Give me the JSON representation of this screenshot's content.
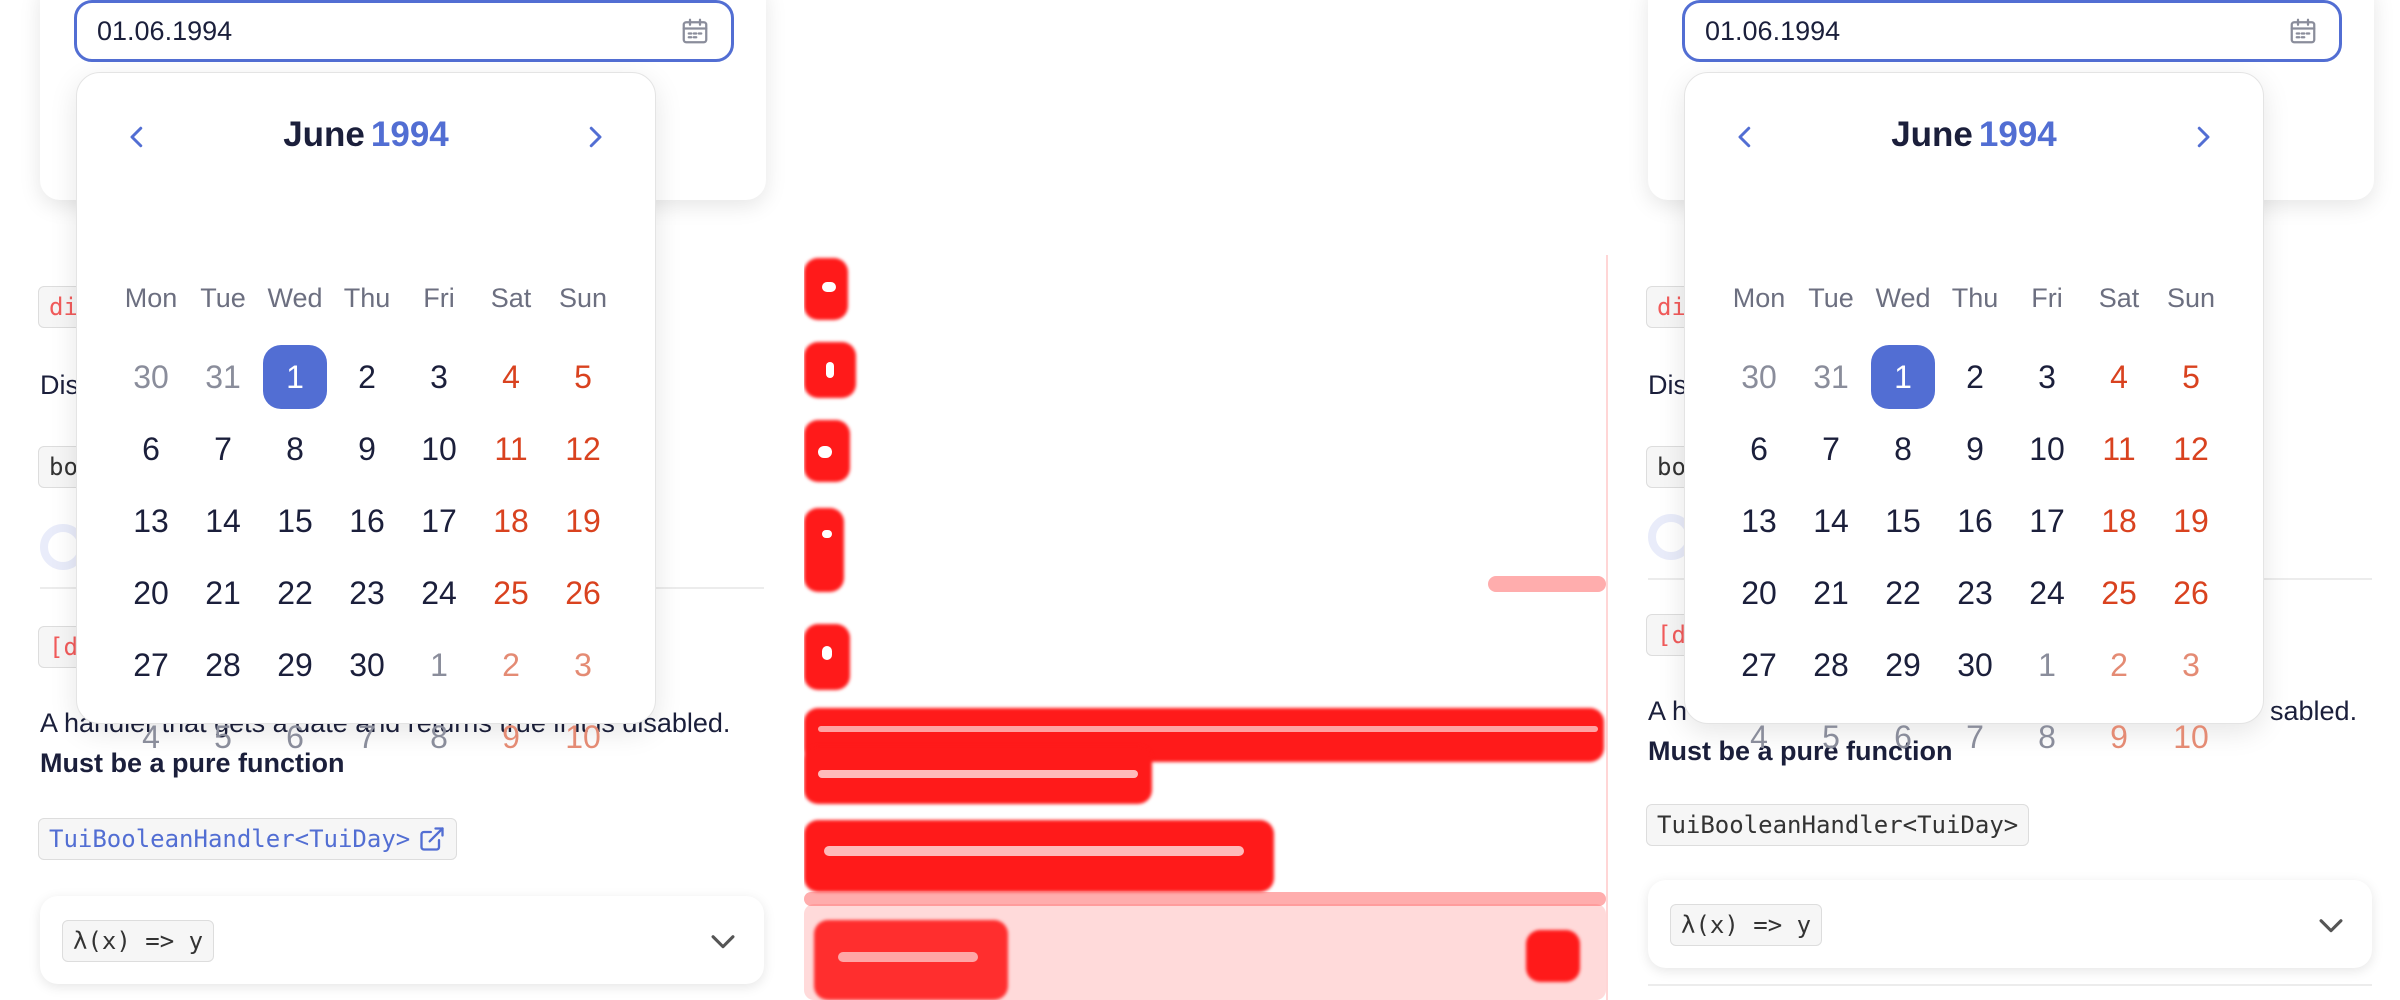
{
  "date_input": {
    "value": "01.06.1994"
  },
  "calendar": {
    "month": "June",
    "year": "1994",
    "weekdays": [
      "Mon",
      "Tue",
      "Wed",
      "Thu",
      "Fri",
      "Sat",
      "Sun"
    ],
    "weeks": [
      [
        "30",
        "31",
        "1",
        "2",
        "3",
        "4",
        "5"
      ],
      [
        "6",
        "7",
        "8",
        "9",
        "10",
        "11",
        "12"
      ],
      [
        "13",
        "14",
        "15",
        "16",
        "17",
        "18",
        "19"
      ],
      [
        "20",
        "21",
        "22",
        "23",
        "24",
        "25",
        "26"
      ],
      [
        "27",
        "28",
        "29",
        "30",
        "1",
        "2",
        "3"
      ],
      [
        "4",
        "5",
        "6",
        "7",
        "8",
        "9",
        "10"
      ]
    ],
    "selected_day": "1"
  },
  "left_docs": {
    "code_disabled": "di",
    "text_disabled": "Dis",
    "code_boolean": "bo",
    "code_disabled_item": "[d",
    "handler_text": "A handler that gets a date and returns true if it is disabled.",
    "pure_text": "Must be a pure function",
    "type_link": "TuiBooleanHandler<TuiDay>",
    "lambda": "λ(x) => y"
  },
  "right_docs": {
    "code_disabled": "di",
    "text_disabled": "Dis",
    "code_boolean": "bo",
    "code_disabled_item": "[d",
    "handler_prefix": "A h",
    "handler_suffix": "sabled.",
    "pure_text": "Must be a pure function",
    "type_tag": "TuiBooleanHandler<TuiDay>",
    "lambda": "λ(x) => y"
  },
  "colors": {
    "accent": "#526ed3",
    "weekend": "#d9421f",
    "diff": "#ff1a1a"
  }
}
